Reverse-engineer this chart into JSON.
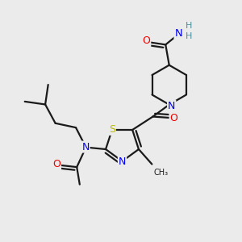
{
  "background_color": "#ebebeb",
  "atom_colors": {
    "C": "#1a1a1a",
    "N": "#0000ee",
    "O": "#ee0000",
    "S": "#b8b800",
    "H": "#4a8fa0"
  },
  "bond_color": "#1a1a1a",
  "bond_width": 1.6
}
